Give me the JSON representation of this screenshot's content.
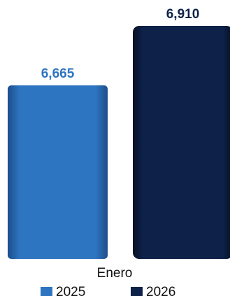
{
  "chart_data": {
    "type": "bar",
    "categories": [
      "Enero"
    ],
    "series": [
      {
        "name": "2025",
        "values": [
          6665
        ],
        "value_labels": [
          "6,665"
        ],
        "color": "#2e75c1"
      },
      {
        "name": "2026",
        "values": [
          6910
        ],
        "value_labels": [
          "6,910"
        ],
        "color": "#0e2148"
      }
    ],
    "ylim": [
      5950,
      6910
    ],
    "grid": false,
    "legend_position": "bottom"
  }
}
